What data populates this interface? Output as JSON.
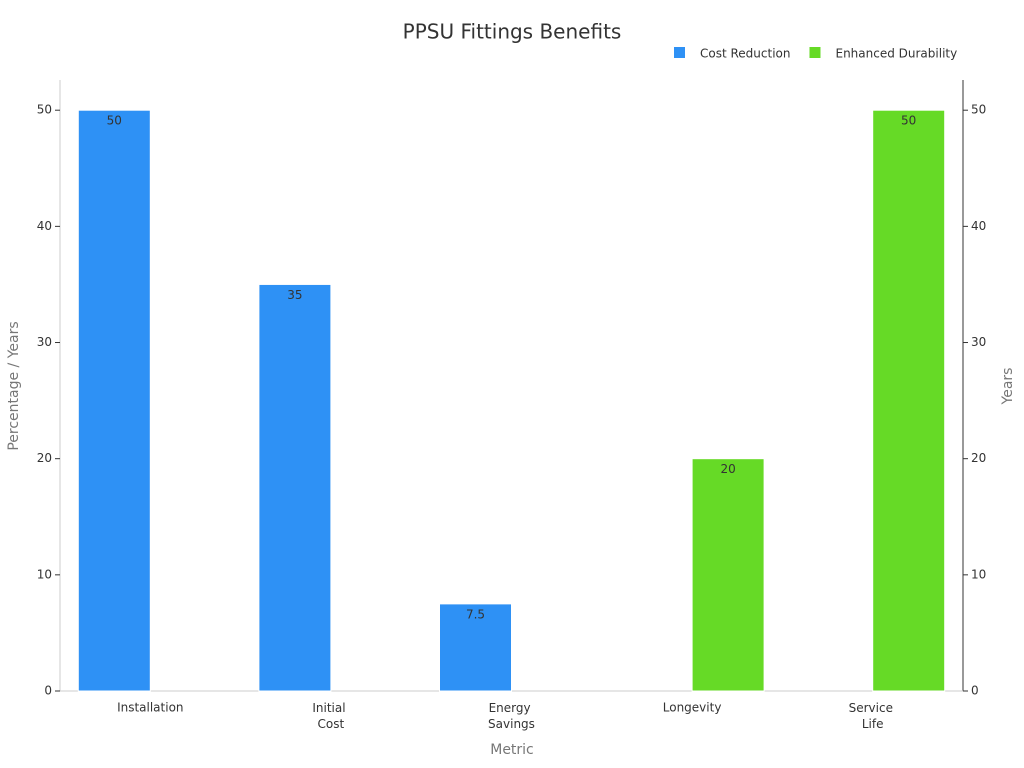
{
  "chart_data": {
    "type": "bar",
    "title": "PPSU Fittings Benefits",
    "x_label": "Metric",
    "y_label": "Percentage / Years",
    "y2_label": "Years",
    "categories": [
      "Installation",
      "Initial Cost",
      "Energy Savings",
      "Longevity",
      "Service Life"
    ],
    "series": [
      {
        "name": "Cost Reduction",
        "color": "#2e91f5",
        "values": [
          50,
          35,
          7.5,
          null,
          null
        ]
      },
      {
        "name": "Enhanced Durability",
        "color": "#66da26",
        "axis": "y2",
        "values": [
          null,
          null,
          null,
          20,
          50
        ]
      }
    ],
    "ylim": [
      0,
      52.6
    ],
    "yticks": [
      0,
      10,
      20,
      30,
      40,
      50
    ],
    "y2lim": [
      0,
      52.6
    ],
    "y2ticks": [
      0,
      10,
      20,
      30,
      40,
      50
    ],
    "grid": false,
    "legend": "top-right"
  }
}
